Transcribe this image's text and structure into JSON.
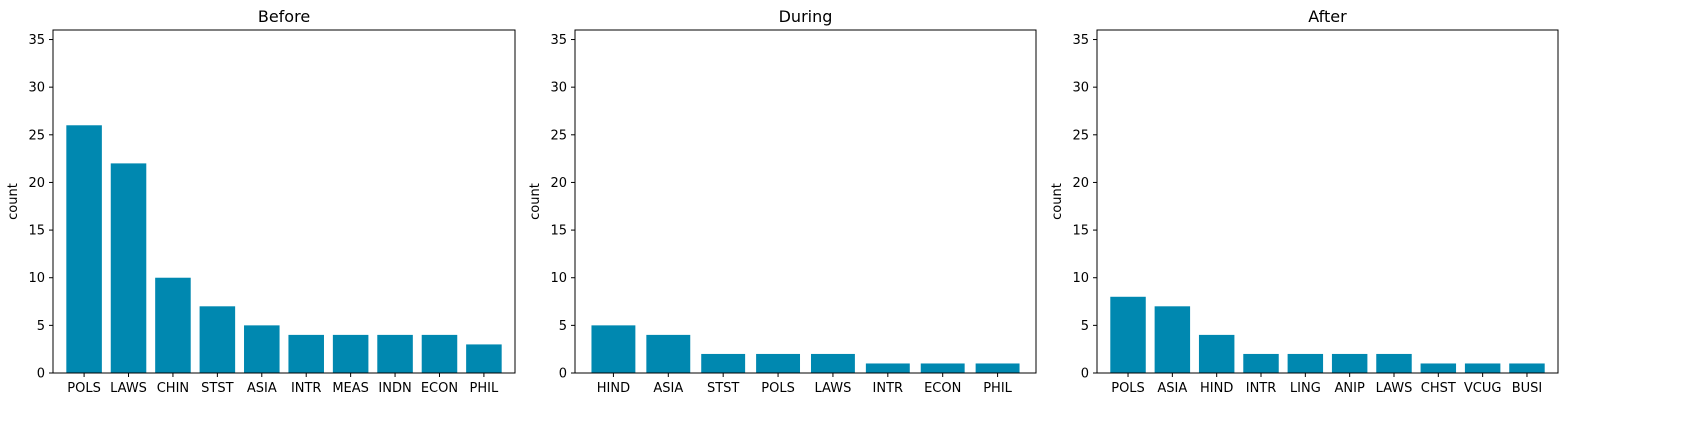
{
  "bar_color": "#0088b0",
  "chart_data": [
    {
      "type": "bar",
      "title": "Before",
      "ylabel": "count",
      "xlabel": "",
      "ylim": [
        0,
        36
      ],
      "yticks": [
        0,
        5,
        10,
        15,
        20,
        25,
        30,
        35
      ],
      "categories": [
        "POLS",
        "LAWS",
        "CHIN",
        "STST",
        "ASIA",
        "INTR",
        "MEAS",
        "INDN",
        "ECON",
        "PHIL"
      ],
      "values": [
        26,
        22,
        10,
        7,
        5,
        4,
        4,
        4,
        4,
        3
      ]
    },
    {
      "type": "bar",
      "title": "During",
      "ylabel": "count",
      "xlabel": "",
      "ylim": [
        0,
        36
      ],
      "yticks": [
        0,
        5,
        10,
        15,
        20,
        25,
        30,
        35
      ],
      "categories": [
        "HIND",
        "ASIA",
        "STST",
        "POLS",
        "LAWS",
        "INTR",
        "ECON",
        "PHIL"
      ],
      "values": [
        5,
        4,
        2,
        2,
        2,
        1,
        1,
        1
      ]
    },
    {
      "type": "bar",
      "title": "After",
      "ylabel": "count",
      "xlabel": "",
      "ylim": [
        0,
        36
      ],
      "yticks": [
        0,
        5,
        10,
        15,
        20,
        25,
        30,
        35
      ],
      "categories": [
        "POLS",
        "ASIA",
        "HIND",
        "INTR",
        "LING",
        "ANIP",
        "LAWS",
        "CHST",
        "VCUG",
        "BUSI"
      ],
      "values": [
        8,
        7,
        4,
        2,
        2,
        2,
        2,
        1,
        1,
        1
      ]
    }
  ]
}
